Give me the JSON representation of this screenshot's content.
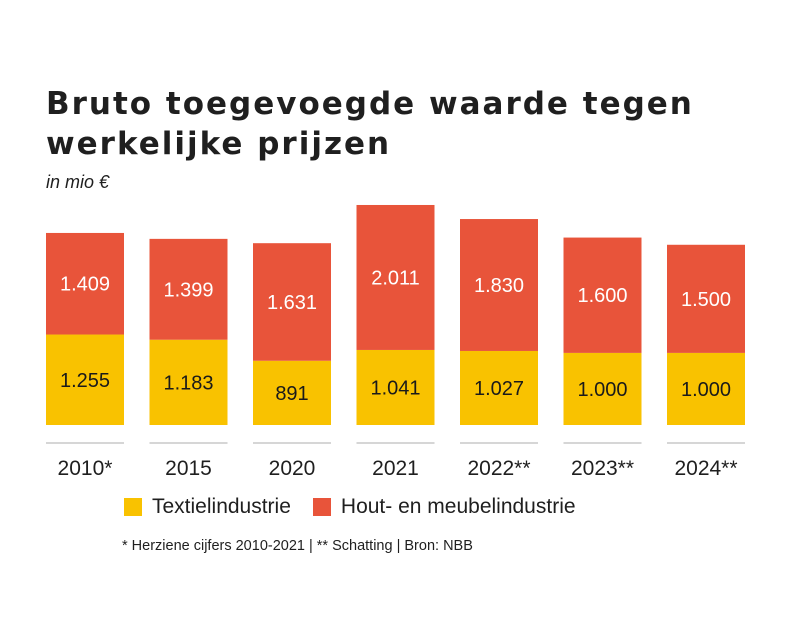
{
  "title_lines": [
    "Bruto toegevoegde waarde tegen",
    "werkelijke prijzen"
  ],
  "subtitle": "in mio €",
  "colors": {
    "textiel": "#f9c200",
    "hout": "#e8543a",
    "baseline": "#c8c8c8"
  },
  "footnote": "* Herziene cijfers 2010-2021 |  ** Schatting  |  Bron: NBB",
  "chart_data": {
    "type": "bar",
    "stacked": true,
    "title": "Bruto toegevoegde waarde tegen werkelijke prijzen",
    "subtitle": "in mio €",
    "categories": [
      "2010*",
      "2015",
      "2020",
      "2021",
      "2022**",
      "2023**",
      "2024**"
    ],
    "series": [
      {
        "name": "Textielindustrie",
        "color": "#f9c200",
        "values": [
          1255,
          1183,
          891,
          1041,
          1027,
          1000,
          1000
        ],
        "labels": [
          "1.255",
          "1.183",
          "891",
          "1.041",
          "1.027",
          "1.000",
          "1.000"
        ]
      },
      {
        "name": "Hout- en meubelindustrie",
        "color": "#e8543a",
        "values": [
          1409,
          1399,
          1631,
          2011,
          1830,
          1600,
          1500
        ],
        "labels": [
          "1.409",
          "1.399",
          "1.631",
          "2.011",
          "1.830",
          "1.600",
          "1.500"
        ]
      }
    ],
    "ylim": [
      0,
      3052
    ],
    "grid": false,
    "legend_position": "bottom"
  }
}
